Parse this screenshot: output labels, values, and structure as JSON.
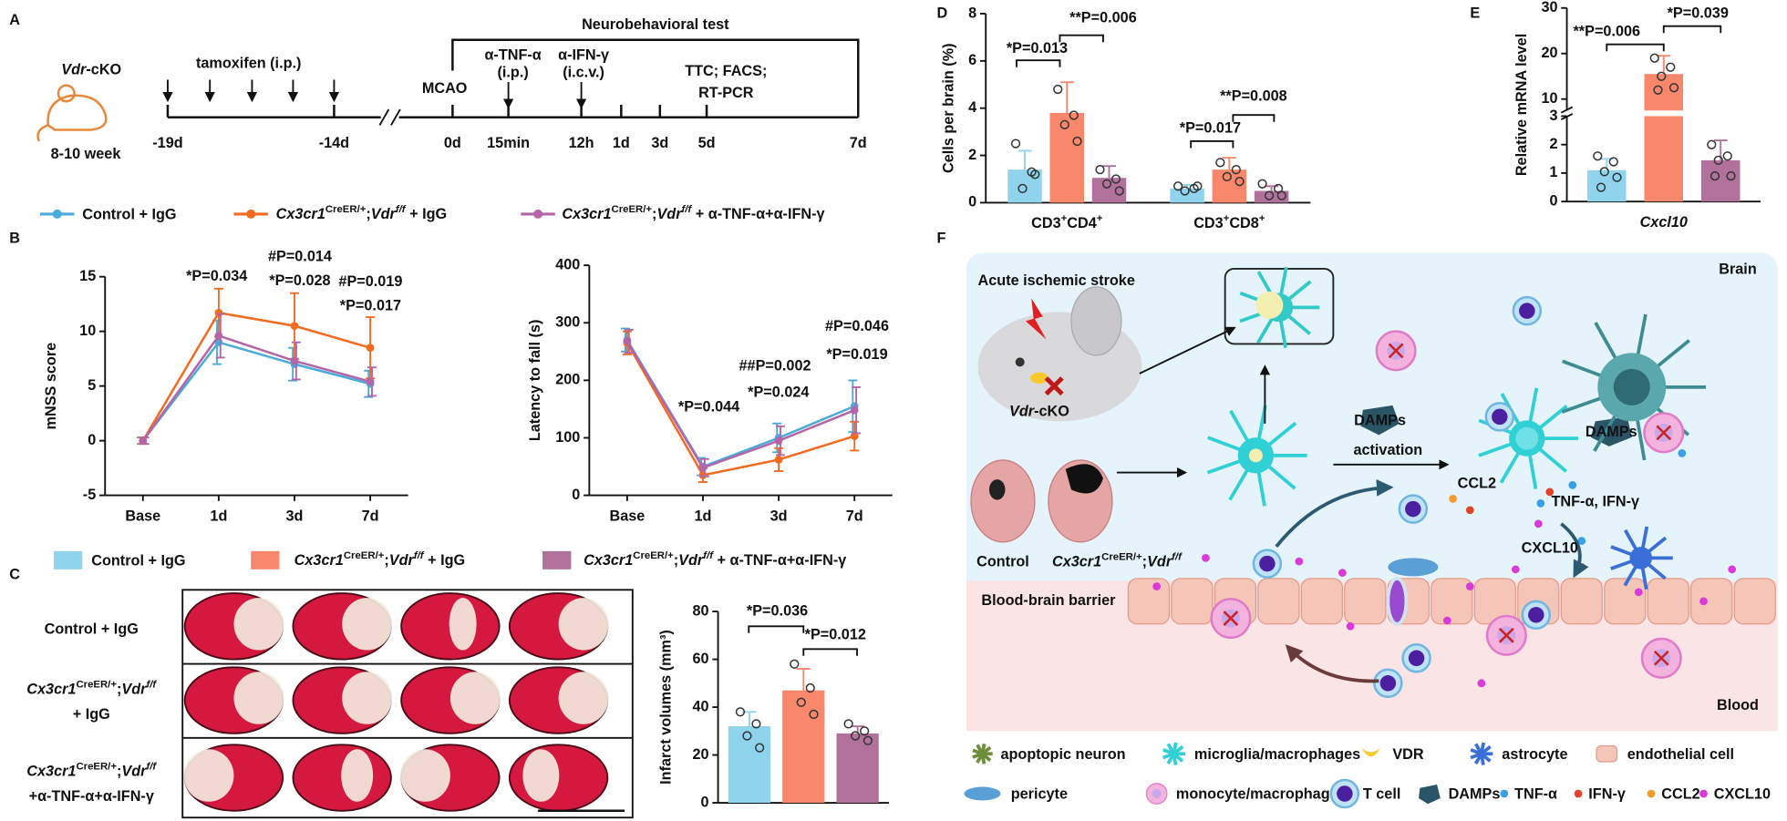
{
  "panel_labels": [
    "A",
    "B",
    "C",
    "D",
    "E",
    "F"
  ],
  "timeline": {
    "model": [
      {
        "t": "Vdr",
        "s": "i"
      },
      {
        "t": "-cKO"
      }
    ],
    "age": "8-10 week",
    "tamoxifen": "tamoxifen (i.p.)",
    "surgery": "MCAO",
    "test": "Neurobehavioral test",
    "anti_tnf": [
      "α-TNF-α",
      "(i.p.)"
    ],
    "anti_ifn": [
      "α-IFN-γ",
      "(i.c.v.)"
    ],
    "assays": [
      "TTC; FACS;",
      "RT-PCR"
    ],
    "time_labels": [
      "-19d",
      "-14d",
      "0d",
      "15min",
      "12h",
      "1d",
      "3d",
      "5d",
      "7d"
    ]
  },
  "legend_b": [
    {
      "name": "Control + IgG",
      "color": "#4aabdb"
    },
    {
      "name": [
        {
          "t": "Cx3cr1",
          "s": "i"
        },
        {
          "t": "CreER/+",
          "s": "sup"
        },
        {
          "t": ";"
        },
        {
          "t": "Vdr",
          "s": "i"
        },
        {
          "t": "f/f",
          "s": "isup"
        },
        {
          "t": " + IgG"
        }
      ],
      "color": "#f26b21"
    },
    {
      "name": [
        {
          "t": "Cx3cr1",
          "s": "i"
        },
        {
          "t": "CreER/+",
          "s": "sup"
        },
        {
          "t": ";"
        },
        {
          "t": "Vdr",
          "s": "i"
        },
        {
          "t": "f/f",
          "s": "isup"
        },
        {
          "t": " + α-TNF-α+α-IFN-γ"
        }
      ],
      "color": "#b565a7"
    }
  ],
  "legend_c": [
    {
      "name": "Control + IgG",
      "color": "#8fd3ec"
    },
    {
      "name": [
        {
          "t": "Cx3cr1",
          "s": "i"
        },
        {
          "t": "CreER/+",
          "s": "sup"
        },
        {
          "t": ";"
        },
        {
          "t": "Vdr",
          "s": "i"
        },
        {
          "t": "f/f",
          "s": "isup"
        },
        {
          "t": " + IgG"
        }
      ],
      "color": "#f8876b"
    },
    {
      "name": [
        {
          "t": "Cx3cr1",
          "s": "i"
        },
        {
          "t": "CreER/+",
          "s": "sup"
        },
        {
          "t": ";"
        },
        {
          "t": "Vdr",
          "s": "i"
        },
        {
          "t": "f/f",
          "s": "isup"
        },
        {
          "t": " + α-TNF-α+α-IFN-γ"
        }
      ],
      "color": "#b0719a"
    }
  ],
  "panel_c": {
    "rows": [
      [
        "Control + IgG"
      ],
      [
        [
          {
            "t": "Cx3cr1",
            "s": "i"
          },
          {
            "t": "CreER/+",
            "s": "sup"
          },
          {
            "t": ";"
          },
          {
            "t": "Vdr",
            "s": "i"
          },
          {
            "t": "f/f",
            "s": "isup"
          }
        ],
        "+ IgG"
      ],
      [
        [
          {
            "t": "Cx3cr1",
            "s": "i"
          },
          {
            "t": "CreER/+",
            "s": "sup"
          },
          {
            "t": ";"
          },
          {
            "t": "Vdr",
            "s": "i"
          },
          {
            "t": "f/f",
            "s": "isup"
          }
        ],
        "+α-TNF-α+α-IFN-γ"
      ]
    ]
  },
  "chart_data": [
    {
      "type": "line",
      "y_label": "mNSS score",
      "categories": [
        "Base",
        "1d",
        "3d",
        "7d"
      ],
      "ylim": [
        -5,
        15
      ],
      "yticks": [
        -5,
        0,
        5,
        10,
        15
      ],
      "series": [
        {
          "color": "#4aabdb",
          "values": [
            0,
            9.0,
            7.0,
            5.2
          ],
          "errors": [
            0.3,
            2.0,
            1.5,
            1.2
          ]
        },
        {
          "color": "#f26b21",
          "values": [
            0,
            11.7,
            10.5,
            8.5
          ],
          "errors": [
            0.3,
            2.2,
            3.0,
            2.8
          ]
        },
        {
          "color": "#b565a7",
          "values": [
            0,
            9.6,
            7.3,
            5.4
          ],
          "errors": [
            0.3,
            2.0,
            1.7,
            1.3
          ]
        }
      ],
      "annotations": [
        "*P=0.034",
        "#P=0.014",
        "*P=0.028",
        "#P=0.019",
        "*P=0.017"
      ]
    },
    {
      "type": "line",
      "y_label": "Latency to fall (s)",
      "categories": [
        "Base",
        "1d",
        "3d",
        "7d"
      ],
      "ylim": [
        0,
        400
      ],
      "yticks": [
        0,
        100,
        200,
        300,
        400
      ],
      "series": [
        {
          "color": "#4aabdb",
          "values": [
            270,
            50,
            100,
            155
          ],
          "errors": [
            20,
            15,
            25,
            45
          ]
        },
        {
          "color": "#f26b21",
          "values": [
            265,
            35,
            62,
            103
          ],
          "errors": [
            20,
            12,
            20,
            25
          ]
        },
        {
          "color": "#b565a7",
          "values": [
            268,
            48,
            95,
            148
          ],
          "errors": [
            20,
            15,
            25,
            40
          ]
        }
      ],
      "annotations": [
        "*P=0.044",
        "##P=0.002",
        "*P=0.024",
        "#P=0.046",
        "*P=0.019"
      ]
    },
    {
      "type": "bar",
      "y_label": "Infarct volumes (mm³)",
      "categories": [
        null
      ],
      "ylim": [
        0,
        80
      ],
      "yticks": [
        0,
        20,
        40,
        60,
        80
      ],
      "series": [
        {
          "color": "#8fd3ec",
          "values": [
            32
          ],
          "errors": [
            6
          ],
          "points": [
            [
              38,
              33,
              28,
              23
            ]
          ]
        },
        {
          "color": "#f8876b",
          "values": [
            47
          ],
          "errors": [
            9
          ],
          "points": [
            [
              58,
              48,
              42,
              37
            ]
          ]
        },
        {
          "color": "#b0719a",
          "values": [
            29
          ],
          "errors": [
            3
          ],
          "points": [
            [
              33,
              30,
              28,
              26
            ]
          ]
        }
      ],
      "annotations": [
        "*P=0.036",
        "*P=0.012"
      ]
    },
    {
      "type": "bar",
      "y_label": "Cells per brain (%)",
      "categories": [
        [
          {
            "t": "CD3"
          },
          {
            "t": "+",
            "s": "sup"
          },
          {
            "t": "CD4"
          },
          {
            "t": "+",
            "s": "sup"
          }
        ],
        [
          {
            "t": "CD3"
          },
          {
            "t": "+",
            "s": "sup"
          },
          {
            "t": "CD8"
          },
          {
            "t": "+",
            "s": "sup"
          }
        ]
      ],
      "ylim": [
        0,
        8
      ],
      "yticks": [
        0,
        2,
        4,
        6,
        8
      ],
      "series": [
        {
          "color": "#8fd3ec",
          "values": [
            1.4,
            0.6
          ],
          "errors": [
            0.8,
            0.15
          ],
          "points": [
            [
              2.5,
              1.3,
              0.6,
              1.2
            ],
            [
              0.7,
              0.6,
              0.5,
              0.7
            ]
          ]
        },
        {
          "color": "#f8876b",
          "values": [
            3.8,
            1.4
          ],
          "errors": [
            1.3,
            0.5
          ],
          "points": [
            [
              4.8,
              3.7,
              3.3,
              2.6
            ],
            [
              1.7,
              1.4,
              1.1,
              0.9
            ]
          ]
        },
        {
          "color": "#b0719a",
          "values": [
            1.05,
            0.5
          ],
          "errors": [
            0.5,
            0.2
          ],
          "points": [
            [
              1.4,
              1.0,
              0.8,
              0.5
            ],
            [
              0.8,
              0.6,
              0.3,
              0.3
            ]
          ]
        }
      ],
      "annotations": [
        "*P=0.013",
        "**P=0.006",
        "*P=0.017",
        "**P=0.008"
      ]
    },
    {
      "type": "bar",
      "y_label": "Relative mRNA level",
      "categories": [
        [
          {
            "t": "Cxcl10",
            "s": "i"
          }
        ]
      ],
      "ylim": [
        0,
        30
      ],
      "ybreak": [
        3,
        7.5
      ],
      "yticks": [
        0,
        1,
        2,
        3,
        10,
        20,
        30
      ],
      "series": [
        {
          "color": "#8fd3ec",
          "values": [
            1.1
          ],
          "errors": [
            0.4
          ],
          "points": [
            [
              1.6,
              1.4,
              1.05,
              0.85,
              0.5
            ]
          ]
        },
        {
          "color": "#f8876b",
          "values": [
            15.5
          ],
          "errors": [
            4
          ],
          "points": [
            [
              19,
              17,
              15,
              12.5,
              12
            ]
          ]
        },
        {
          "color": "#b0719a",
          "values": [
            1.45
          ],
          "errors": [
            0.7
          ],
          "points": [
            [
              2.0,
              1.6,
              1.45,
              0.9,
              0.9
            ]
          ]
        }
      ],
      "annotations": [
        "**P=0.006",
        "*P=0.039"
      ]
    }
  ],
  "diagram": {
    "labels": [
      "Acute ischemic stroke",
      [
        {
          "t": "Vdr",
          "s": "i"
        },
        {
          "t": "-cKO"
        }
      ],
      "Control",
      [
        {
          "t": "Cx3cr1",
          "s": "i"
        },
        {
          "t": "CreER/+",
          "s": "sup"
        },
        {
          "t": ";"
        },
        {
          "t": "Vdr",
          "s": "i"
        },
        {
          "t": "f/f",
          "s": "isup"
        }
      ],
      "Brain",
      "DAMPs",
      "DAMPs",
      "activation",
      "CCL2",
      "TNF-α, IFN-γ",
      "CXCL10",
      "Blood-brain barrier",
      "Blood"
    ],
    "legend": [
      "apoptopic neuron",
      "microglia/macrophages",
      "VDR",
      "astrocyte",
      "endothelial cell",
      "pericyte",
      "monocyte/macrophages",
      "T cell",
      "DAMPs",
      "TNF-α",
      "IFN-γ",
      "CCL2",
      "CXCL10"
    ]
  }
}
